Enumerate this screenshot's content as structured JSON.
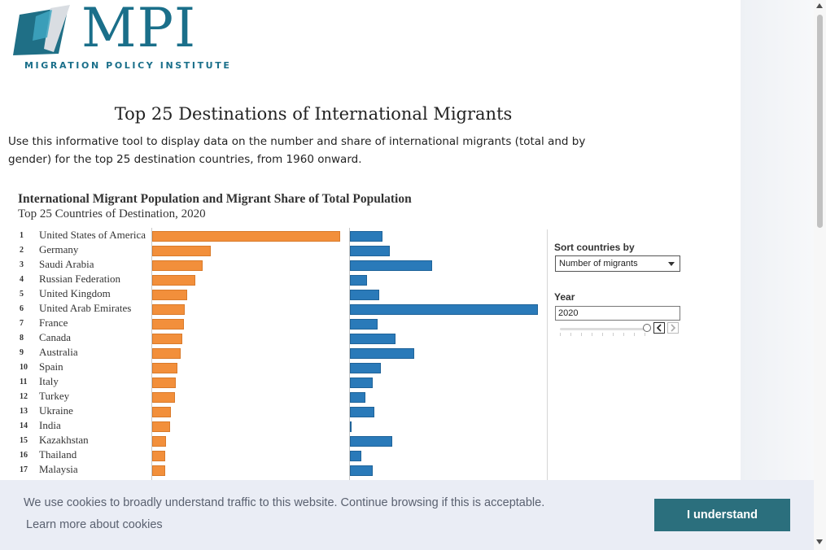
{
  "logo": {
    "name": "MPI",
    "subtitle": "MIGRATION POLICY INSTITUTE"
  },
  "page": {
    "title": "Top 25 Destinations of International Migrants",
    "intro": "Use this informative tool to display data on the number and share of international migrants (total and by gender) for the top 25 destination countries, from 1960 onward."
  },
  "chart": {
    "title": "International Migrant Population and Migrant Share of Total Population",
    "subtitle": "Top 25 Countries of Destination, 2020"
  },
  "chart_data": {
    "type": "bar",
    "categories": [
      "United States of America",
      "Germany",
      "Saudi Arabia",
      "Russian Federation",
      "United Kingdom",
      "United Arab Emirates",
      "France",
      "Canada",
      "Australia",
      "Spain",
      "Italy",
      "Turkey",
      "Ukraine",
      "India",
      "Kazakhstan",
      "Thailand",
      "Malaysia"
    ],
    "ranks": [
      "1",
      "2",
      "3",
      "4",
      "5",
      "6",
      "7",
      "8",
      "9",
      "10",
      "11",
      "12",
      "13",
      "14",
      "15",
      "16",
      "17"
    ],
    "series": [
      {
        "values": [
          50.6,
          15.8,
          13.5,
          11.6,
          9.4,
          8.7,
          8.5,
          8.0,
          7.7,
          6.8,
          6.4,
          6.1,
          5.1,
          4.9,
          3.7,
          3.6,
          3.5
        ]
      },
      {
        "values": [
          15.3,
          18.8,
          38.6,
          7.9,
          13.8,
          88.1,
          13.1,
          21.3,
          30.0,
          14.6,
          10.6,
          7.2,
          11.3,
          0.4,
          19.9,
          5.2,
          10.7
        ]
      }
    ],
    "colors": {
      "series_1": "#f28f3b",
      "series_2": "#2a7ab9"
    },
    "grid": false
  },
  "controls": {
    "sort_label": "Sort countries by",
    "sort_value": "Number of migrants",
    "year_label": "Year",
    "year_value": "2020",
    "prev_icon": "chevron-left-icon",
    "next_icon": "chevron-right-icon"
  },
  "cookie": {
    "message": "We use cookies to broadly understand traffic to this website. Continue browsing if this is acceptable.",
    "link": "Learn more about cookies",
    "button": "I understand"
  }
}
